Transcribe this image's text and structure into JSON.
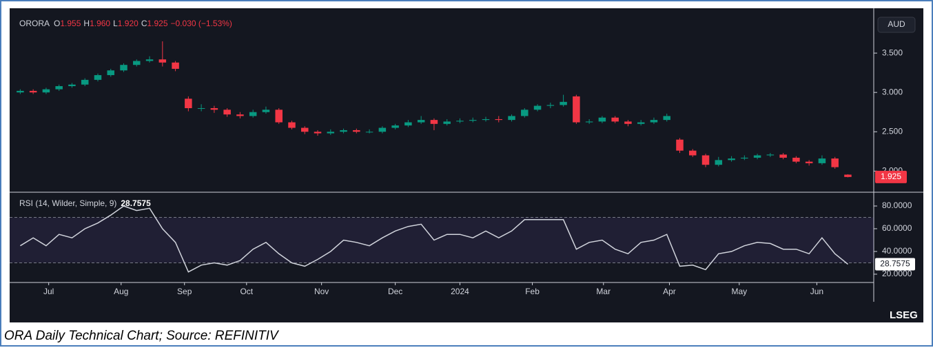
{
  "chart_data": [
    {
      "type": "candlestick",
      "symbol": "ORORA",
      "ohlc_header": [
        {
          "label": "O",
          "value": "1.955"
        },
        {
          "label": "H",
          "value": "1.960"
        },
        {
          "label": "L",
          "value": "1.920"
        },
        {
          "label": "C",
          "value": "1.925"
        }
      ],
      "change": "−0.030 (−1.53%)",
      "currency": "AUD",
      "up_color": "#089981",
      "down_color": "#f23645",
      "open": [
        3.0,
        3.02,
        3.0,
        3.04,
        3.08,
        3.1,
        3.16,
        3.22,
        3.28,
        3.35,
        3.4,
        3.42,
        3.38,
        2.92,
        2.8,
        2.8,
        2.78,
        2.72,
        2.7,
        2.75,
        2.78,
        2.62,
        2.55,
        2.5,
        2.48,
        2.5,
        2.52,
        2.5,
        2.5,
        2.55,
        2.58,
        2.62,
        2.65,
        2.6,
        2.63,
        2.64,
        2.65,
        2.66,
        2.65,
        2.7,
        2.78,
        2.83,
        2.84,
        2.95,
        2.62,
        2.63,
        2.68,
        2.63,
        2.6,
        2.62,
        2.65,
        2.4,
        2.26,
        2.2,
        2.08,
        2.14,
        2.16,
        2.17,
        2.2,
        2.21,
        2.17,
        2.12,
        2.1,
        2.16,
        1.955
      ],
      "high": [
        3.04,
        3.04,
        3.06,
        3.1,
        3.12,
        3.18,
        3.24,
        3.3,
        3.37,
        3.42,
        3.46,
        3.65,
        3.4,
        2.95,
        2.85,
        2.83,
        2.8,
        2.75,
        2.78,
        2.82,
        2.8,
        2.64,
        2.57,
        2.52,
        2.53,
        2.54,
        2.54,
        2.53,
        2.57,
        2.6,
        2.65,
        2.7,
        2.67,
        2.66,
        2.67,
        2.68,
        2.69,
        2.7,
        2.72,
        2.8,
        2.85,
        2.87,
        2.97,
        2.97,
        2.66,
        2.7,
        2.7,
        2.65,
        2.65,
        2.68,
        2.73,
        2.42,
        2.28,
        2.22,
        2.18,
        2.19,
        2.2,
        2.22,
        2.23,
        2.23,
        2.19,
        2.14,
        2.2,
        2.18,
        1.96
      ],
      "low": [
        2.98,
        2.98,
        2.98,
        3.02,
        3.06,
        3.08,
        3.14,
        3.2,
        3.26,
        3.33,
        3.38,
        3.33,
        3.27,
        2.76,
        2.76,
        2.74,
        2.69,
        2.67,
        2.68,
        2.73,
        2.6,
        2.53,
        2.47,
        2.45,
        2.46,
        2.48,
        2.48,
        2.48,
        2.48,
        2.53,
        2.56,
        2.6,
        2.52,
        2.58,
        2.61,
        2.62,
        2.63,
        2.62,
        2.63,
        2.68,
        2.76,
        2.8,
        2.82,
        2.6,
        2.6,
        2.61,
        2.61,
        2.57,
        2.58,
        2.6,
        2.63,
        2.23,
        2.18,
        2.05,
        2.06,
        2.12,
        2.14,
        2.15,
        2.18,
        2.15,
        2.1,
        2.07,
        2.08,
        2.03,
        1.92
      ],
      "close": [
        3.02,
        3.0,
        3.04,
        3.08,
        3.1,
        3.16,
        3.22,
        3.28,
        3.35,
        3.4,
        3.42,
        3.38,
        3.3,
        2.8,
        2.8,
        2.78,
        2.72,
        2.7,
        2.75,
        2.78,
        2.62,
        2.55,
        2.5,
        2.48,
        2.5,
        2.52,
        2.5,
        2.5,
        2.55,
        2.58,
        2.62,
        2.65,
        2.6,
        2.63,
        2.64,
        2.65,
        2.66,
        2.65,
        2.7,
        2.78,
        2.83,
        2.84,
        2.88,
        2.62,
        2.63,
        2.68,
        2.63,
        2.6,
        2.62,
        2.65,
        2.7,
        2.26,
        2.2,
        2.08,
        2.14,
        2.16,
        2.17,
        2.2,
        2.21,
        2.17,
        2.12,
        2.1,
        2.16,
        2.05,
        1.925
      ],
      "xlim": [
        -0.5,
        66
      ],
      "xticks": [
        {
          "value": 2.2,
          "label": "Jul"
        },
        {
          "value": 7.8,
          "label": "Aug"
        },
        {
          "value": 12.7,
          "label": "Sep"
        },
        {
          "value": 17.5,
          "label": "Oct"
        },
        {
          "value": 23.3,
          "label": "Nov"
        },
        {
          "value": 29.0,
          "label": "Dec"
        },
        {
          "value": 34.0,
          "label": "2024"
        },
        {
          "value": 39.6,
          "label": "Feb"
        },
        {
          "value": 45.1,
          "label": "Mar"
        },
        {
          "value": 50.2,
          "label": "Apr"
        },
        {
          "value": 55.6,
          "label": "May"
        },
        {
          "value": 61.6,
          "label": "Jun"
        }
      ],
      "ylim": [
        1.74,
        4.0
      ],
      "yticks": [
        {
          "value": 2.0,
          "label": "2.000"
        },
        {
          "value": 2.5,
          "label": "2.500"
        },
        {
          "value": 3.0,
          "label": "3.000"
        },
        {
          "value": 3.5,
          "label": "3.500"
        }
      ]
    },
    {
      "type": "line",
      "title": "RSI (14, Wilder, Simple, 9)",
      "color": "#d1d4dc",
      "values": [
        45,
        52,
        45,
        55,
        52,
        60,
        65,
        72,
        80,
        76,
        78,
        60,
        48,
        22,
        28,
        30,
        28,
        32,
        42,
        48,
        38,
        30,
        27,
        33,
        40,
        50,
        48,
        45,
        52,
        58,
        62,
        64,
        50,
        55,
        55,
        52,
        58,
        52,
        58,
        68,
        68,
        68,
        68,
        42,
        48,
        50,
        42,
        38,
        48,
        50,
        55,
        27,
        28,
        24,
        38,
        40,
        45,
        48,
        47,
        42,
        42,
        38,
        52,
        38,
        28.7575
      ],
      "levels": [
        30,
        70
      ],
      "level_color": "#7e57c2",
      "xlim": [
        -0.5,
        66
      ],
      "ylim": [
        12.7,
        90.3
      ],
      "yticks": [
        {
          "value": 20,
          "label": "20.0000"
        },
        {
          "value": 40,
          "label": "40.0000"
        },
        {
          "value": 60,
          "label": "60.0000"
        },
        {
          "value": 80,
          "label": "80.0000"
        }
      ]
    }
  ],
  "caption": "ORA Daily Technical Chart; Source: REFINITIV",
  "logo": "LSEG"
}
